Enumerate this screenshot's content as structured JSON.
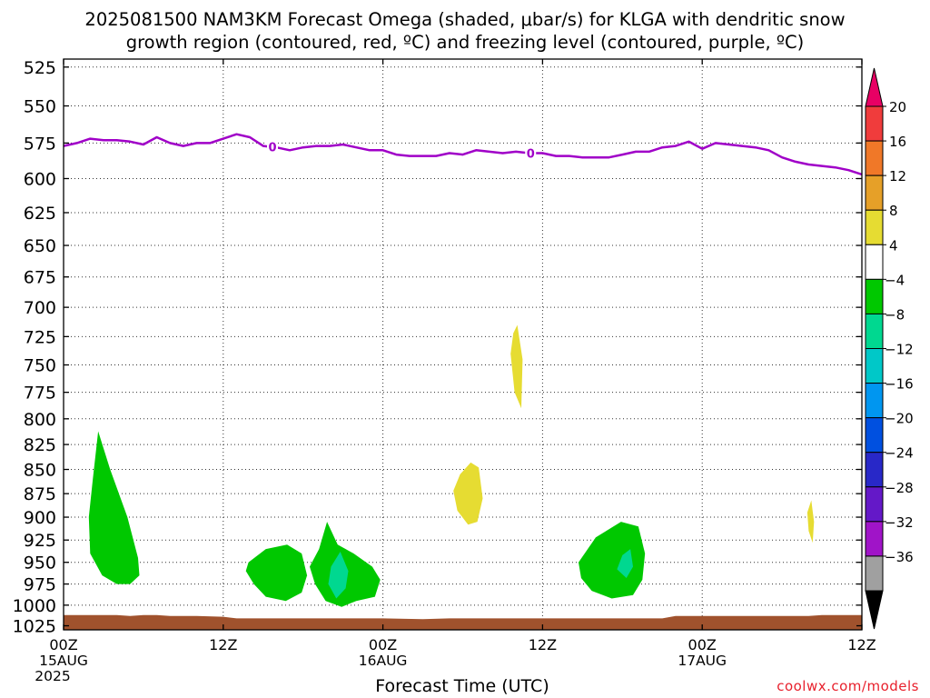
{
  "title_line1": "2025081500 NAM3KM Forecast Omega (shaded, μbar/s) for KLGA with dendritic snow",
  "title_line2": "growth region (contoured, red, ºC) and freezing level (contoured, purple, ºC)",
  "credit": "coolwx.com/models",
  "chart_data": {
    "type": "area",
    "xlabel": "Forecast Time (UTC)",
    "x_ticks": [
      "00Z",
      "12Z",
      "00Z",
      "12Z",
      "00Z",
      "12Z"
    ],
    "x_tick_hours": [
      0,
      12,
      24,
      36,
      48,
      60
    ],
    "x_date_labels": [
      {
        "hour": 0,
        "lines": [
          "15AUG",
          "2025"
        ]
      },
      {
        "hour": 24,
        "lines": [
          "16AUG"
        ]
      },
      {
        "hour": 48,
        "lines": [
          "17AUG"
        ]
      }
    ],
    "xlim": [
      0,
      60
    ],
    "ylabel": "",
    "y_scale": "log",
    "y_reversed": true,
    "ylim": [
      520,
      1030
    ],
    "y_ticks": [
      525,
      550,
      575,
      600,
      625,
      650,
      675,
      700,
      725,
      750,
      775,
      800,
      825,
      850,
      875,
      900,
      925,
      950,
      975,
      1000,
      1025
    ],
    "grid": true,
    "freezing_level": {
      "label": "0",
      "color": "#a000c8",
      "label_hours": [
        15.7,
        35.1
      ],
      "points": [
        [
          0,
          577
        ],
        [
          1,
          575
        ],
        [
          2,
          572
        ],
        [
          3,
          573
        ],
        [
          4,
          573
        ],
        [
          5,
          574
        ],
        [
          6,
          576
        ],
        [
          7,
          571
        ],
        [
          8,
          575
        ],
        [
          9,
          577
        ],
        [
          10,
          575
        ],
        [
          11,
          575
        ],
        [
          12,
          572
        ],
        [
          13,
          569
        ],
        [
          14,
          571
        ],
        [
          15,
          577
        ],
        [
          16,
          578
        ],
        [
          17,
          580
        ],
        [
          18,
          578
        ],
        [
          19,
          577
        ],
        [
          20,
          577
        ],
        [
          21,
          576
        ],
        [
          22,
          578
        ],
        [
          23,
          580
        ],
        [
          24,
          580
        ],
        [
          25,
          583
        ],
        [
          26,
          584
        ],
        [
          27,
          584
        ],
        [
          28,
          584
        ],
        [
          29,
          582
        ],
        [
          30,
          583
        ],
        [
          31,
          580
        ],
        [
          32,
          581
        ],
        [
          33,
          582
        ],
        [
          34,
          581
        ],
        [
          35,
          582
        ],
        [
          36,
          582
        ],
        [
          37,
          584
        ],
        [
          38,
          584
        ],
        [
          39,
          585
        ],
        [
          40,
          585
        ],
        [
          41,
          585
        ],
        [
          42,
          583
        ],
        [
          43,
          581
        ],
        [
          44,
          581
        ],
        [
          45,
          578
        ],
        [
          46,
          577
        ],
        [
          47,
          574
        ],
        [
          48,
          579
        ],
        [
          49,
          575
        ],
        [
          50,
          576
        ],
        [
          51,
          577
        ],
        [
          52,
          578
        ],
        [
          53,
          580
        ],
        [
          54,
          585
        ],
        [
          55,
          588
        ],
        [
          56,
          590
        ],
        [
          57,
          591
        ],
        [
          58,
          592
        ],
        [
          59,
          594
        ],
        [
          60,
          597
        ]
      ]
    },
    "omega_regions": [
      {
        "value": -8,
        "color": "#00c800",
        "points": [
          [
            2.6,
            812
          ],
          [
            3.5,
            850
          ],
          [
            4.8,
            900
          ],
          [
            5.6,
            945
          ],
          [
            5.7,
            965
          ],
          [
            5.0,
            975
          ],
          [
            4.0,
            975
          ],
          [
            2.9,
            965
          ],
          [
            2.0,
            940
          ],
          [
            1.9,
            900
          ],
          [
            2.2,
            860
          ]
        ]
      },
      {
        "value": -8,
        "color": "#00c800",
        "points": [
          [
            13.9,
            950
          ],
          [
            15.2,
            935
          ],
          [
            16.8,
            930
          ],
          [
            17.9,
            940
          ],
          [
            18.3,
            965
          ],
          [
            17.9,
            985
          ],
          [
            16.7,
            995
          ],
          [
            15.2,
            990
          ],
          [
            14.3,
            975
          ],
          [
            13.7,
            960
          ]
        ]
      },
      {
        "value": -8,
        "color": "#00c800",
        "points": [
          [
            19.8,
            905
          ],
          [
            20.6,
            930
          ],
          [
            21.8,
            940
          ],
          [
            23.2,
            955
          ],
          [
            23.8,
            970
          ],
          [
            23.4,
            990
          ],
          [
            22.0,
            995
          ],
          [
            20.9,
            1002
          ],
          [
            19.7,
            995
          ],
          [
            18.9,
            975
          ],
          [
            18.5,
            955
          ],
          [
            19.2,
            935
          ]
        ]
      },
      {
        "value": -12,
        "color": "#00d890",
        "points": [
          [
            20.8,
            938
          ],
          [
            21.4,
            960
          ],
          [
            21.2,
            980
          ],
          [
            20.5,
            992
          ],
          [
            19.9,
            975
          ],
          [
            20.1,
            955
          ]
        ]
      },
      {
        "value": -8,
        "color": "#00c800",
        "points": [
          [
            41.9,
            905
          ],
          [
            43.2,
            910
          ],
          [
            43.7,
            940
          ],
          [
            43.5,
            970
          ],
          [
            42.8,
            988
          ],
          [
            41.2,
            992
          ],
          [
            39.7,
            983
          ],
          [
            38.9,
            968
          ],
          [
            38.7,
            950
          ],
          [
            40.0,
            922
          ]
        ]
      },
      {
        "value": -12,
        "color": "#00d890",
        "points": [
          [
            42.6,
            935
          ],
          [
            42.8,
            955
          ],
          [
            42.3,
            968
          ],
          [
            41.6,
            958
          ],
          [
            42.0,
            942
          ]
        ]
      },
      {
        "value": 4,
        "color": "#e6dc32",
        "points": [
          [
            34.1,
            715
          ],
          [
            34.5,
            745
          ],
          [
            34.4,
            790
          ],
          [
            33.9,
            775
          ],
          [
            33.6,
            740
          ],
          [
            33.8,
            722
          ]
        ]
      },
      {
        "value": 4,
        "color": "#e6dc32",
        "points": [
          [
            30.6,
            843
          ],
          [
            31.2,
            848
          ],
          [
            31.5,
            880
          ],
          [
            31.1,
            905
          ],
          [
            30.4,
            908
          ],
          [
            29.6,
            893
          ],
          [
            29.3,
            872
          ],
          [
            29.8,
            855
          ]
        ]
      },
      {
        "value": 4,
        "color": "#e6dc32",
        "points": [
          [
            56.2,
            882
          ],
          [
            56.4,
            905
          ],
          [
            56.3,
            928
          ],
          [
            56.0,
            915
          ],
          [
            55.9,
            895
          ]
        ]
      }
    ],
    "terrain": {
      "color": "#a0522d",
      "top": [
        [
          0,
          1012
        ],
        [
          2,
          1012
        ],
        [
          4,
          1012
        ],
        [
          5,
          1013
        ],
        [
          6,
          1012
        ],
        [
          7,
          1012
        ],
        [
          8,
          1013
        ],
        [
          10,
          1013
        ],
        [
          12,
          1014
        ],
        [
          13,
          1016
        ],
        [
          18,
          1016
        ],
        [
          24,
          1016
        ],
        [
          27,
          1017
        ],
        [
          29,
          1016
        ],
        [
          36,
          1016
        ],
        [
          44,
          1016
        ],
        [
          45,
          1016
        ],
        [
          46,
          1013
        ],
        [
          53,
          1013
        ],
        [
          55,
          1013
        ],
        [
          56,
          1013
        ],
        [
          57,
          1012
        ],
        [
          60,
          1012
        ]
      ]
    },
    "colorbar": {
      "labels": [
        "20",
        "16",
        "12",
        "8",
        "4",
        "-4",
        "-8",
        "-12",
        "-16",
        "-20",
        "-24",
        "-28",
        "-32",
        "-36"
      ],
      "colors": [
        "#e80064",
        "#f03c3c",
        "#f07828",
        "#e6a028",
        "#e6dc32",
        "#ffffff",
        "#00c800",
        "#00d890",
        "#00c8c8",
        "#0096f0",
        "#0050e0",
        "#2828c8",
        "#6418c8",
        "#a014c8",
        "#a0a0a0",
        "#000000"
      ]
    }
  }
}
